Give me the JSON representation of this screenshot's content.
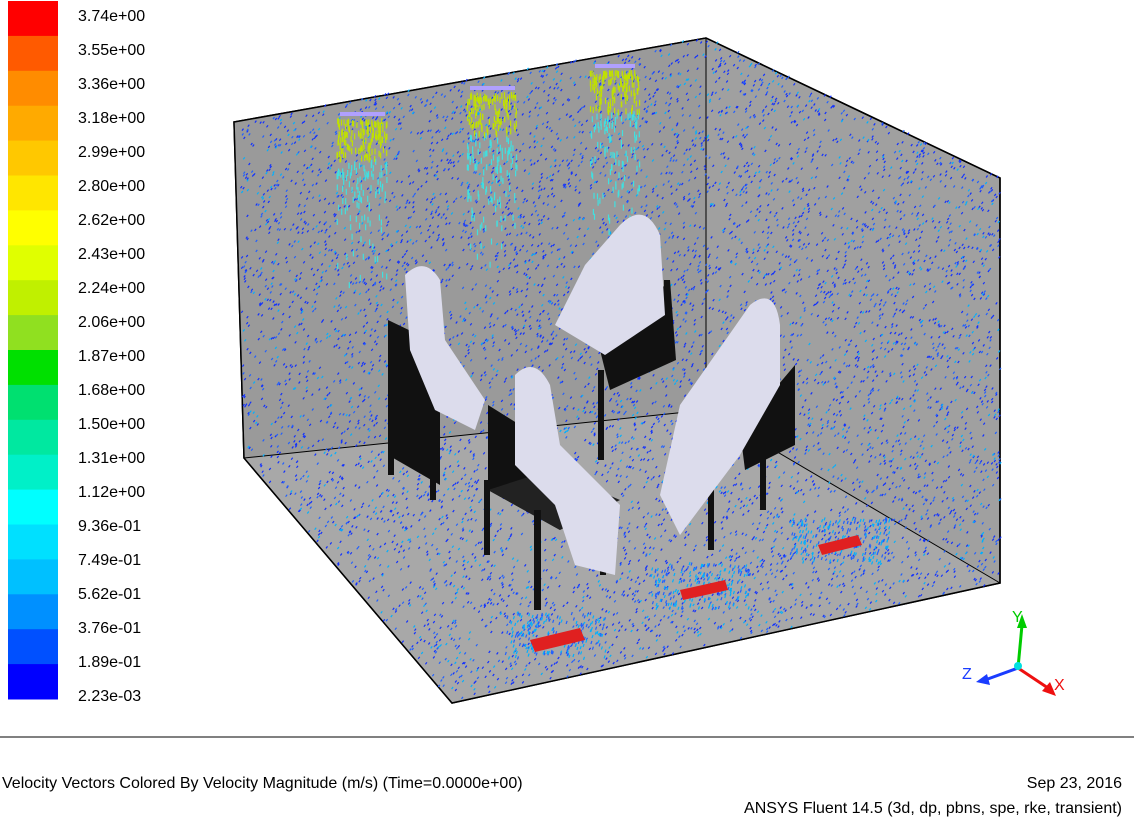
{
  "legend": {
    "labels": [
      "3.74e+00",
      "3.55e+00",
      "3.36e+00",
      "3.18e+00",
      "2.99e+00",
      "2.80e+00",
      "2.62e+00",
      "2.43e+00",
      "2.24e+00",
      "2.06e+00",
      "1.87e+00",
      "1.68e+00",
      "1.50e+00",
      "1.31e+00",
      "1.12e+00",
      "9.36e-01",
      "7.49e-01",
      "5.62e-01",
      "3.76e-01",
      "1.89e-01",
      "2.23e-03"
    ]
  },
  "axes": {
    "x": "X",
    "y": "Y",
    "z": "Z"
  },
  "footer": {
    "title": "Velocity Vectors Colored By Velocity Magnitude (m/s)  (Time=0.0000e+00)",
    "date": "Sep 23, 2016",
    "solver": "ANSYS Fluent 14.5 (3d, dp, pbns, spe, rke, transient)"
  }
}
